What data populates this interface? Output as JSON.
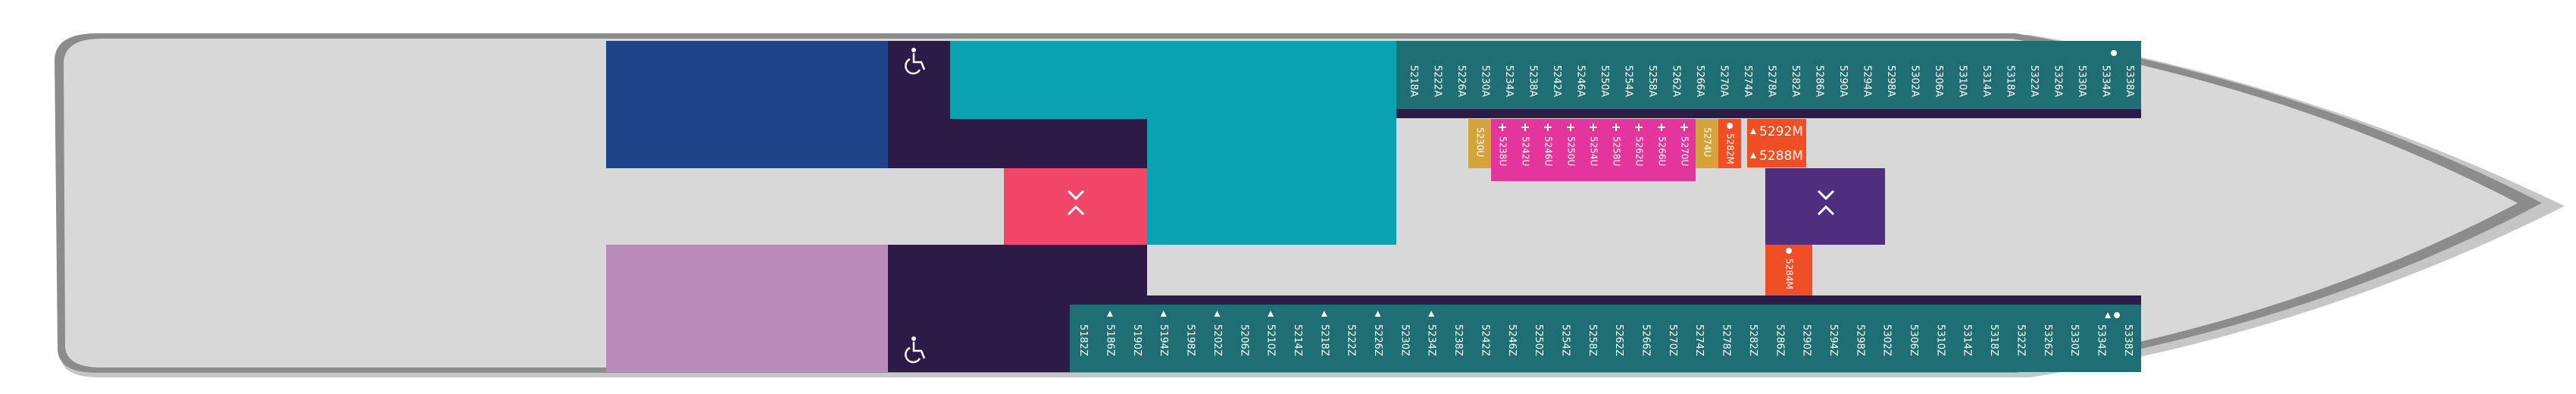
{
  "deck": {
    "colors": {
      "hull_fill": "#d8d8d8",
      "hull_outline": "#8c8c8c",
      "hull_shadow": "#c6c6c6",
      "navy_block": "#1f4489",
      "lilac_block": "#b98aba",
      "service_dark": "#2d1b47",
      "atrium_teal": "#0aa1b2",
      "stair_pink": "#f04769",
      "stair_purple": "#4f2d7f",
      "cabin_teal": "#1f6e73",
      "divider_dark": "#2d1b47",
      "cabin_gold": "#d4a33a",
      "cabin_magenta": "#e3359c",
      "cabin_orange": "#f04e25"
    },
    "icons": [
      "accessible-icon",
      "accessible-icon",
      "stair-icon",
      "stair-icon",
      "bullet-icon",
      "triangle-icon",
      "plus-icon"
    ],
    "top_cabins": [
      "5218A",
      "5222A",
      "5226A",
      "5230A",
      "5234A",
      "5238A",
      "5242A",
      "5246A",
      "5250A",
      "5254A",
      "5258A",
      "5262A",
      "5266A",
      "5270A",
      "5274A",
      "5278A",
      "5282A",
      "5286A",
      "5290A",
      "5294A",
      "5298A",
      "5302A",
      "5306A",
      "5310A",
      "5314A",
      "5318A",
      "5322A",
      "5326A",
      "5330A",
      "5334A",
      "5338A"
    ],
    "bottom_cabins": [
      "5182Z",
      "5186Z",
      "5190Z",
      "5194Z",
      "5198Z",
      "5202Z",
      "5206Z",
      "5210Z",
      "5214Z",
      "5218Z",
      "5222Z",
      "5226Z",
      "5230Z",
      "5234Z",
      "5238Z",
      "5242Z",
      "5246Z",
      "5250Z",
      "5254Z",
      "5258Z",
      "5262Z",
      "5266Z",
      "5270Z",
      "5274Z",
      "5278Z",
      "5282Z",
      "5286Z",
      "5290Z",
      "5294Z",
      "5298Z",
      "5302Z",
      "5306Z",
      "5310Z",
      "5314Z",
      "5318Z",
      "5322Z",
      "5326Z",
      "5330Z",
      "5334Z",
      "5338Z"
    ],
    "gold_cabins": [
      "5230U",
      "5274U"
    ],
    "magenta_cabins": [
      "5238U",
      "5242U",
      "5246U",
      "5250U",
      "5254U",
      "5258U",
      "5262U",
      "5266U",
      "5270U"
    ],
    "orange_mid_cabin": "5282M",
    "orange_horizontal": [
      "5292M",
      "5288M"
    ],
    "orange_lower_cabin": "5284M"
  }
}
